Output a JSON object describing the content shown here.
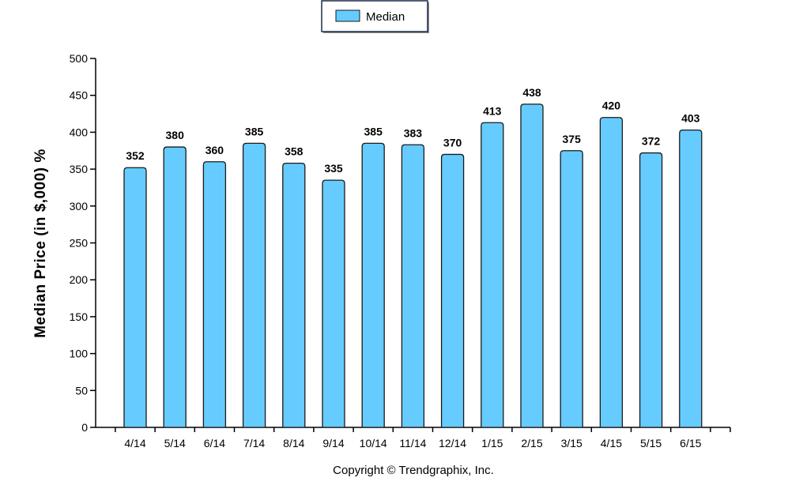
{
  "chart_data": {
    "type": "bar",
    "categories": [
      "4/14",
      "5/14",
      "6/14",
      "7/14",
      "8/14",
      "9/14",
      "10/14",
      "11/14",
      "12/14",
      "1/15",
      "2/15",
      "3/15",
      "4/15",
      "5/15",
      "6/15"
    ],
    "series": [
      {
        "name": "Median",
        "values": [
          352,
          380,
          360,
          385,
          358,
          335,
          385,
          383,
          370,
          413,
          438,
          375,
          420,
          372,
          403
        ]
      }
    ],
    "data_labels": [
      "352",
      "380",
      "360",
      "385",
      "358",
      "335",
      "385",
      "383",
      "370",
      "413",
      "438",
      "375",
      "420",
      "372",
      "403"
    ],
    "ylabel": "Median Price (in $,000) %",
    "xlabel": "",
    "ylim": [
      0,
      500
    ],
    "yticks": [
      0,
      50,
      100,
      150,
      200,
      250,
      300,
      350,
      400,
      450,
      500
    ],
    "ytick_labels": [
      "0",
      "50",
      "100",
      "150",
      "200",
      "250",
      "300",
      "350",
      "400",
      "450",
      "500"
    ],
    "legend": {
      "position": "top-center",
      "entries": [
        "Median"
      ]
    },
    "grid": false,
    "bar_color": "#66ccff",
    "bar_edge_color": "#1a1a1a"
  },
  "footer": {
    "copyright": "Copyright © Trendgraphix, Inc."
  }
}
